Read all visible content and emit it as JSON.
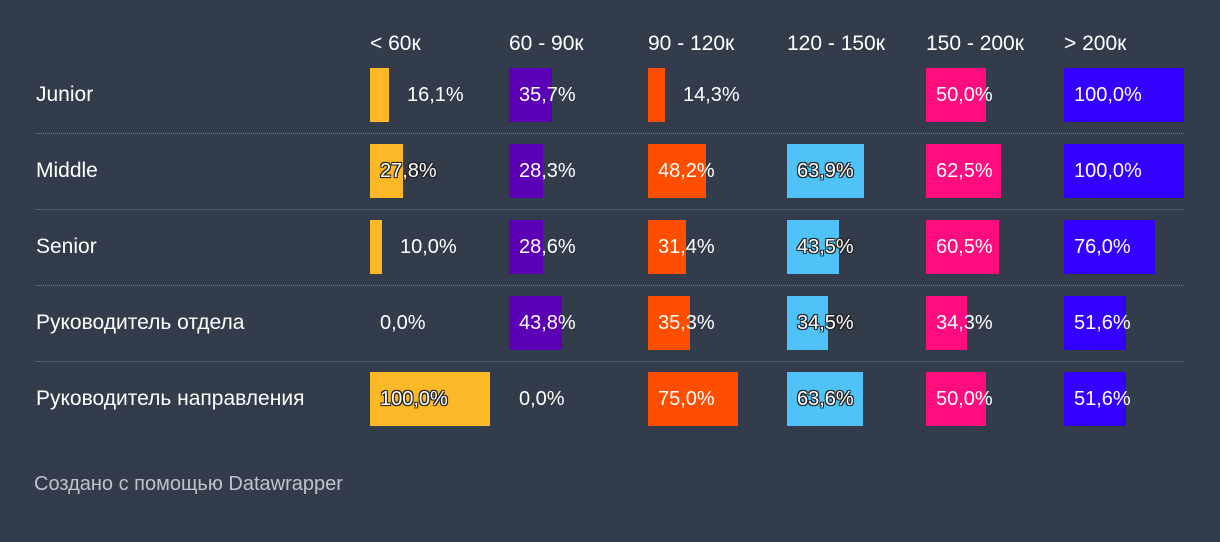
{
  "chart_data": {
    "type": "table",
    "columns": [
      {
        "label": "< 60к",
        "color": "#fdb827"
      },
      {
        "label": "60 - 90к",
        "color": "#5b00b4"
      },
      {
        "label": "90 - 120к",
        "color": "#ff4e00"
      },
      {
        "label": "120 - 150к",
        "color": "#4fc3f7"
      },
      {
        "label": "150 - 200к",
        "color": "#ff0d7f"
      },
      {
        "label": "> 200к",
        "color": "#3300ff"
      }
    ],
    "rows": [
      {
        "label": "Junior",
        "values": [
          16.1,
          35.7,
          14.3,
          null,
          50.0,
          100.0
        ],
        "labels": [
          "16,1%",
          "35,7%",
          "14,3%",
          "",
          "50,0%",
          "100,0%"
        ]
      },
      {
        "label": "Middle",
        "values": [
          27.8,
          28.3,
          48.2,
          63.9,
          62.5,
          100.0
        ],
        "labels": [
          "27,8%",
          "28,3%",
          "48,2%",
          "63,9%",
          "62,5%",
          "100,0%"
        ]
      },
      {
        "label": "Senior",
        "values": [
          10.0,
          28.6,
          31.4,
          43.5,
          60.5,
          76.0
        ],
        "labels": [
          "10,0%",
          "28,6%",
          "31,4%",
          "43,5%",
          "60,5%",
          "76,0%"
        ]
      },
      {
        "label": "Руководитель отдела",
        "values": [
          0.0,
          43.8,
          35.3,
          34.5,
          34.3,
          51.6
        ],
        "labels": [
          "0,0%",
          "43,8%",
          "35,3%",
          "34,5%",
          "34,3%",
          "51,6%"
        ]
      },
      {
        "label": "Руководитель направления",
        "values": [
          100.0,
          0.0,
          75.0,
          63.6,
          50.0,
          51.6
        ],
        "labels": [
          "100,0%",
          "0,0%",
          "75,0%",
          "63,6%",
          "50,0%",
          "51,6%"
        ]
      }
    ],
    "value_range": [
      0,
      100
    ]
  },
  "footer": {
    "text": "Создано с помощью Datawrapper"
  }
}
